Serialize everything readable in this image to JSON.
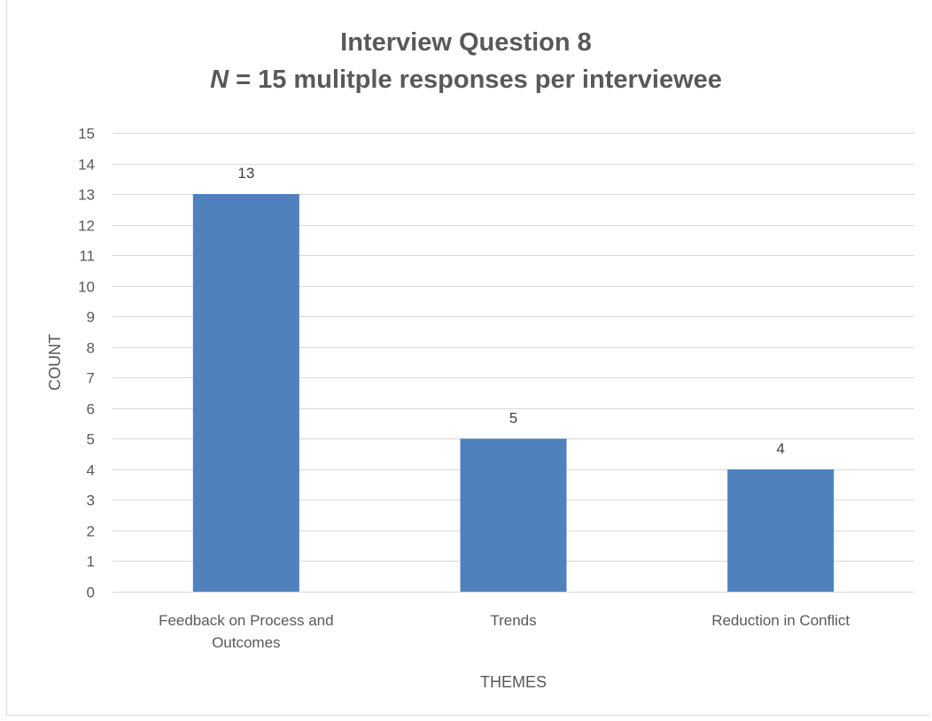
{
  "chart_data": {
    "type": "bar",
    "title_line1": "Interview Question 8",
    "title_line2_var": "N",
    "title_line2_rest": " = 15 mulitple responses per interviewee",
    "xlabel": "THEMES",
    "ylabel": "COUNT",
    "categories": [
      [
        "Feedback on Process and",
        "Outcomes"
      ],
      [
        "Trends"
      ],
      [
        "Reduction in Conflict"
      ]
    ],
    "values": [
      13,
      5,
      4
    ],
    "ylim": [
      0,
      15
    ],
    "ytick_step": 1,
    "grid": true,
    "bar_color": "#4f81bd",
    "grid_color": "#d9d9d9"
  }
}
